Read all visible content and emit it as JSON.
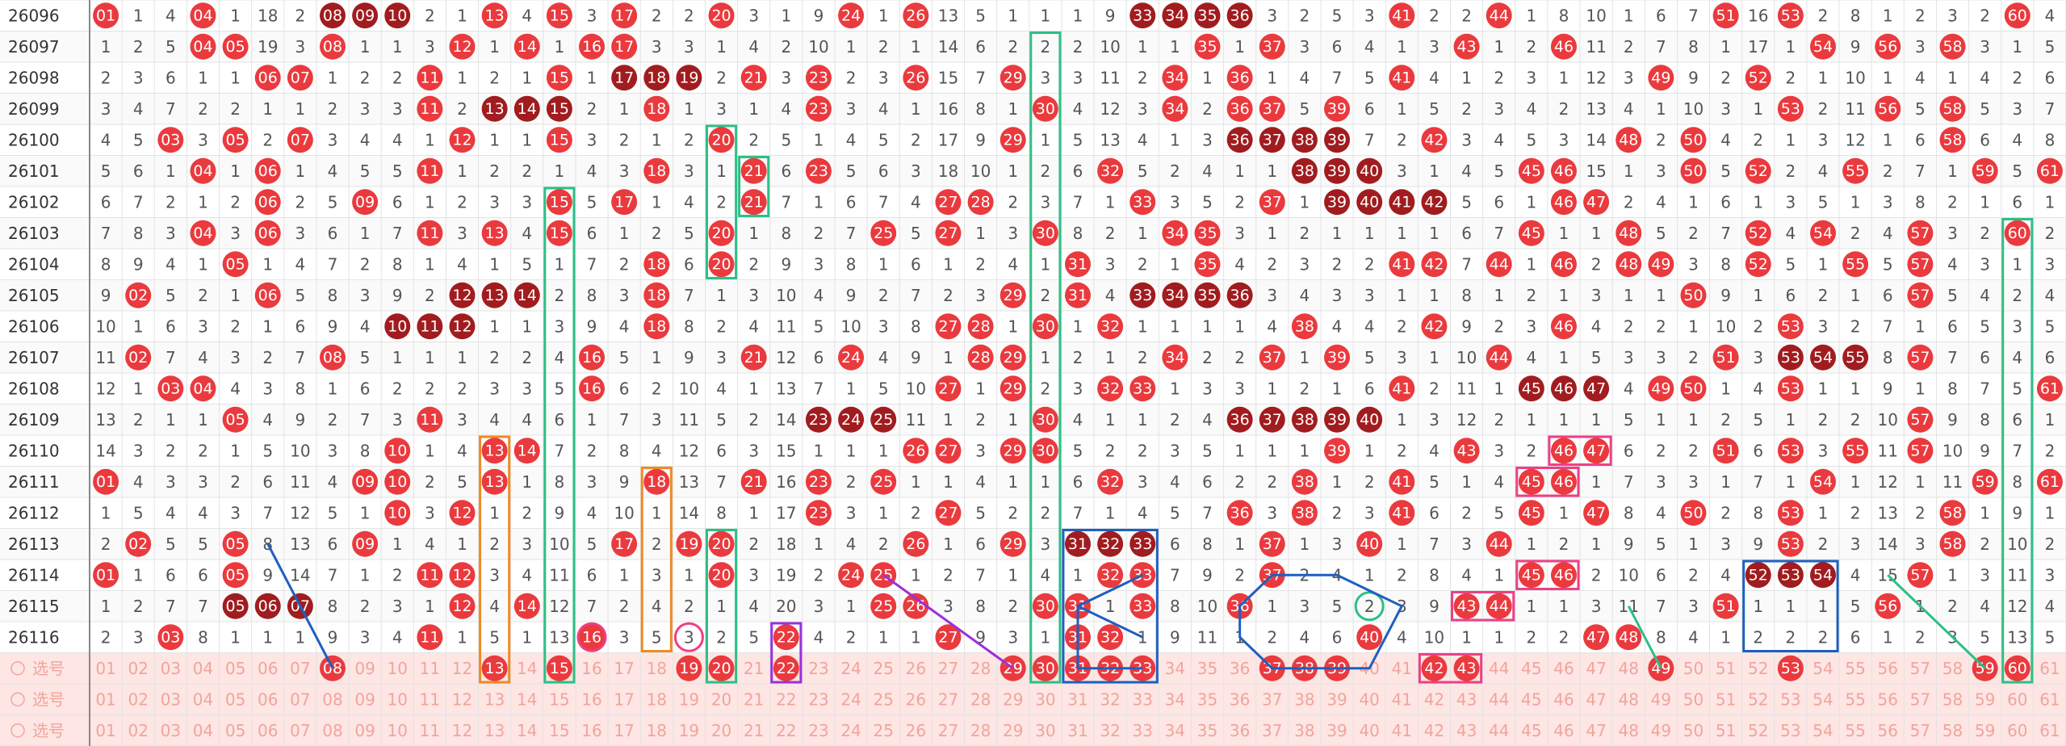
{
  "rows": [
    {
      "period": "26096",
      "cells": [
        "01",
        1,
        4,
        "04",
        1,
        18,
        2,
        "08",
        "09",
        "10",
        2,
        1,
        "13",
        4,
        "15",
        3,
        "17",
        2,
        2,
        "20",
        3,
        1,
        9,
        "24",
        1,
        "26",
        13,
        5,
        1,
        1,
        1,
        9,
        "33",
        "34",
        "35",
        "36",
        3,
        2,
        5,
        3,
        "41",
        2,
        2,
        "44",
        1,
        8,
        10,
        1,
        6,
        7,
        "51",
        16,
        "53",
        2,
        8,
        1,
        2,
        3,
        2,
        "60",
        4
      ]
    },
    {
      "period": "26097",
      "cells": [
        1,
        2,
        5,
        "04",
        "05",
        19,
        3,
        "08",
        1,
        1,
        3,
        "12",
        1,
        "14",
        1,
        "16",
        "17",
        3,
        3,
        1,
        4,
        2,
        10,
        1,
        2,
        1,
        14,
        6,
        2,
        2,
        2,
        10,
        1,
        1,
        "35",
        1,
        "37",
        3,
        6,
        4,
        1,
        3,
        "43",
        1,
        2,
        "46",
        11,
        2,
        7,
        8,
        1,
        17,
        1,
        "54",
        9,
        "56",
        3,
        "58",
        3,
        1,
        5
      ]
    },
    {
      "period": "26098",
      "cells": [
        2,
        3,
        6,
        1,
        1,
        "06",
        "07",
        1,
        2,
        2,
        "11",
        1,
        2,
        1,
        "15",
        1,
        "17",
        "18",
        "19",
        2,
        "21",
        3,
        "23",
        2,
        3,
        "26",
        15,
        7,
        "29",
        3,
        3,
        11,
        2,
        "34",
        1,
        "36",
        1,
        4,
        7,
        5,
        "41",
        4,
        1,
        2,
        3,
        1,
        12,
        3,
        "49",
        9,
        2,
        "52",
        2,
        1,
        10,
        1,
        4,
        1,
        4,
        2,
        6
      ]
    },
    {
      "period": "26099",
      "cells": [
        3,
        4,
        7,
        2,
        2,
        1,
        1,
        2,
        3,
        3,
        "11",
        2,
        "13",
        "14",
        "15",
        2,
        1,
        "18",
        1,
        3,
        1,
        4,
        "23",
        3,
        4,
        1,
        16,
        8,
        1,
        "30",
        4,
        12,
        3,
        "34",
        2,
        "36",
        "37",
        5,
        "39",
        6,
        1,
        5,
        2,
        3,
        4,
        2,
        13,
        4,
        1,
        10,
        3,
        1,
        "53",
        2,
        11,
        "56",
        5,
        "58",
        5,
        3,
        7
      ]
    },
    {
      "period": "26100",
      "cells": [
        4,
        5,
        "03",
        3,
        "05",
        2,
        "07",
        3,
        4,
        4,
        1,
        "12",
        1,
        1,
        "15",
        3,
        2,
        1,
        2,
        "20",
        2,
        5,
        1,
        4,
        5,
        2,
        17,
        9,
        "29",
        1,
        5,
        13,
        4,
        1,
        3,
        "36",
        "37",
        "38",
        "39",
        7,
        2,
        "42",
        3,
        4,
        5,
        3,
        14,
        "48",
        2,
        "50",
        4,
        2,
        1,
        3,
        12,
        1,
        6,
        "58",
        6,
        4,
        8
      ]
    },
    {
      "period": "26101",
      "cells": [
        5,
        6,
        1,
        "04",
        1,
        "06",
        1,
        4,
        5,
        5,
        "11",
        1,
        2,
        2,
        1,
        4,
        3,
        "18",
        3,
        1,
        "21",
        6,
        "23",
        5,
        6,
        3,
        18,
        10,
        1,
        2,
        6,
        "32",
        5,
        2,
        4,
        1,
        1,
        "38",
        "39",
        "40",
        3,
        1,
        4,
        5,
        "45",
        "46",
        15,
        1,
        3,
        "50",
        5,
        "52",
        2,
        4,
        "55",
        2,
        7,
        1,
        "59",
        5,
        "61"
      ]
    },
    {
      "period": "26102",
      "cells": [
        6,
        7,
        2,
        1,
        2,
        "06",
        2,
        5,
        "09",
        6,
        1,
        2,
        3,
        3,
        "15",
        5,
        "17",
        1,
        4,
        2,
        "21",
        7,
        1,
        6,
        7,
        4,
        "27",
        "28",
        2,
        3,
        7,
        1,
        "33",
        3,
        5,
        2,
        "37",
        1,
        "39",
        "40",
        "41",
        "42",
        5,
        6,
        1,
        "46",
        "47",
        2,
        4,
        1,
        6,
        1,
        3,
        5,
        1,
        3,
        8,
        2,
        1,
        6,
        1
      ]
    },
    {
      "period": "26103",
      "cells": [
        7,
        8,
        3,
        "04",
        3,
        "06",
        3,
        6,
        1,
        7,
        "11",
        3,
        "13",
        4,
        "15",
        6,
        1,
        2,
        5,
        "20",
        1,
        8,
        2,
        7,
        "25",
        5,
        "27",
        1,
        3,
        "30",
        8,
        2,
        1,
        "34",
        "35",
        3,
        1,
        2,
        1,
        1,
        1,
        1,
        6,
        7,
        "45",
        1,
        1,
        "48",
        5,
        2,
        7,
        "52",
        4,
        "54",
        2,
        4,
        "57",
        3,
        2,
        "60",
        2
      ]
    },
    {
      "period": "26104",
      "cells": [
        8,
        9,
        4,
        1,
        "05",
        1,
        4,
        7,
        2,
        8,
        1,
        4,
        1,
        5,
        1,
        7,
        2,
        "18",
        6,
        "20",
        2,
        9,
        3,
        8,
        1,
        6,
        1,
        2,
        4,
        1,
        "31",
        3,
        2,
        1,
        "35",
        4,
        2,
        3,
        2,
        2,
        "41",
        "42",
        7,
        "44",
        1,
        "46",
        2,
        "48",
        "49",
        3,
        8,
        "52",
        5,
        1,
        "55",
        5,
        "57",
        4,
        3,
        1,
        3
      ]
    },
    {
      "period": "26105",
      "cells": [
        9,
        "02",
        5,
        2,
        1,
        "06",
        5,
        8,
        3,
        9,
        2,
        "12",
        "13",
        "14",
        2,
        8,
        3,
        "18",
        7,
        1,
        3,
        10,
        4,
        9,
        2,
        7,
        2,
        3,
        "29",
        2,
        "31",
        4,
        "33",
        "34",
        "35",
        "36",
        3,
        4,
        3,
        3,
        1,
        1,
        8,
        1,
        2,
        1,
        3,
        1,
        1,
        "50",
        9,
        1,
        6,
        2,
        1,
        6,
        "57",
        5,
        4,
        2,
        4
      ]
    },
    {
      "period": "26106",
      "cells": [
        10,
        1,
        6,
        3,
        2,
        1,
        6,
        9,
        4,
        "10",
        "11",
        "12",
        1,
        1,
        3,
        9,
        4,
        "18",
        8,
        2,
        4,
        11,
        5,
        10,
        3,
        8,
        "27",
        "28",
        1,
        "30",
        1,
        "32",
        1,
        1,
        1,
        1,
        4,
        "38",
        4,
        4,
        2,
        "42",
        9,
        2,
        3,
        "46",
        4,
        2,
        2,
        1,
        10,
        2,
        "53",
        3,
        2,
        7,
        1,
        6,
        5,
        3,
        5
      ]
    },
    {
      "period": "26107",
      "cells": [
        11,
        "02",
        7,
        4,
        3,
        2,
        7,
        "08",
        5,
        1,
        1,
        1,
        2,
        2,
        4,
        "16",
        5,
        1,
        9,
        3,
        "21",
        12,
        6,
        "24",
        4,
        9,
        1,
        "28",
        "29",
        1,
        2,
        1,
        2,
        "34",
        2,
        2,
        "37",
        1,
        "39",
        5,
        3,
        1,
        10,
        "44",
        4,
        1,
        5,
        3,
        3,
        2,
        "51",
        3,
        "53",
        "54",
        "55",
        8,
        "57",
        7,
        6,
        4,
        6
      ]
    },
    {
      "period": "26108",
      "cells": [
        12,
        1,
        "03",
        "04",
        4,
        3,
        8,
        1,
        6,
        2,
        2,
        2,
        3,
        3,
        5,
        "16",
        6,
        2,
        10,
        4,
        1,
        13,
        7,
        1,
        5,
        10,
        "27",
        1,
        "29",
        2,
        3,
        "32",
        "33",
        1,
        3,
        3,
        1,
        2,
        1,
        6,
        "41",
        2,
        11,
        1,
        "45",
        "46",
        "47",
        4,
        "49",
        "50",
        1,
        4,
        "53",
        1,
        1,
        9,
        1,
        8,
        7,
        5,
        "61"
      ]
    },
    {
      "period": "26109",
      "cells": [
        13,
        2,
        1,
        1,
        "05",
        4,
        9,
        2,
        7,
        3,
        "11",
        3,
        4,
        4,
        6,
        1,
        7,
        3,
        11,
        5,
        2,
        14,
        "23",
        "24",
        "25",
        11,
        1,
        2,
        1,
        "30",
        4,
        1,
        1,
        2,
        4,
        "36",
        "37",
        "38",
        "39",
        "40",
        1,
        3,
        12,
        2,
        1,
        1,
        1,
        5,
        1,
        1,
        2,
        5,
        1,
        2,
        2,
        10,
        "57",
        9,
        8,
        6,
        1
      ]
    },
    {
      "period": "26110",
      "cells": [
        14,
        3,
        2,
        2,
        1,
        5,
        10,
        3,
        8,
        "10",
        1,
        4,
        "13",
        "14",
        7,
        2,
        8,
        4,
        12,
        6,
        3,
        15,
        1,
        1,
        1,
        "26",
        "27",
        3,
        "29",
        "30",
        5,
        2,
        2,
        3,
        5,
        1,
        1,
        1,
        "39",
        1,
        2,
        4,
        "43",
        3,
        2,
        "46",
        "47",
        6,
        2,
        2,
        "51",
        6,
        "53",
        3,
        "55",
        11,
        "57",
        10,
        9,
        7,
        2
      ]
    },
    {
      "period": "26111",
      "cells": [
        "01",
        4,
        3,
        3,
        2,
        6,
        11,
        4,
        "09",
        "10",
        2,
        5,
        "13",
        1,
        8,
        3,
        9,
        "18",
        13,
        7,
        "21",
        16,
        "23",
        2,
        "25",
        1,
        1,
        4,
        1,
        1,
        6,
        "32",
        3,
        4,
        6,
        2,
        2,
        "38",
        1,
        2,
        "41",
        5,
        1,
        4,
        "45",
        "46",
        1,
        7,
        3,
        3,
        1,
        7,
        1,
        "54",
        1,
        12,
        1,
        11,
        "59",
        8,
        "61"
      ]
    },
    {
      "period": "26112",
      "cells": [
        1,
        5,
        4,
        4,
        3,
        7,
        12,
        5,
        1,
        "10",
        3,
        "12",
        1,
        2,
        9,
        4,
        10,
        1,
        14,
        8,
        1,
        17,
        "23",
        3,
        1,
        2,
        "27",
        5,
        2,
        2,
        7,
        1,
        4,
        5,
        7,
        "36",
        3,
        "38",
        2,
        3,
        "41",
        6,
        2,
        5,
        "45",
        1,
        "47",
        8,
        4,
        "50",
        2,
        8,
        "53",
        1,
        2,
        13,
        2,
        "58",
        1,
        9,
        1
      ]
    },
    {
      "period": "26113",
      "cells": [
        2,
        "02",
        5,
        5,
        "05",
        8,
        13,
        6,
        "09",
        1,
        4,
        1,
        2,
        3,
        10,
        5,
        "17",
        2,
        "19",
        "20",
        2,
        18,
        1,
        4,
        2,
        "26",
        1,
        6,
        "29",
        3,
        "31",
        "32",
        "33",
        6,
        8,
        1,
        "37",
        1,
        3,
        "40",
        1,
        7,
        3,
        "44",
        1,
        2,
        1,
        9,
        5,
        1,
        3,
        9,
        "53",
        2,
        3,
        14,
        3,
        "58",
        2,
        10,
        2
      ]
    },
    {
      "period": "26114",
      "cells": [
        "01",
        1,
        6,
        6,
        "05",
        9,
        14,
        7,
        1,
        2,
        "11",
        "12",
        3,
        4,
        11,
        6,
        1,
        3,
        1,
        "20",
        3,
        19,
        2,
        "24",
        "25",
        1,
        2,
        7,
        1,
        4,
        1,
        "32",
        "33",
        7,
        9,
        2,
        "37",
        2,
        4,
        1,
        2,
        8,
        4,
        1,
        "45",
        "46",
        2,
        10,
        6,
        2,
        4,
        "52",
        "53",
        "54",
        4,
        15,
        "57",
        1,
        3,
        11,
        3
      ]
    },
    {
      "period": "26115",
      "cells": [
        1,
        2,
        7,
        7,
        "05",
        "06",
        "07",
        8,
        2,
        3,
        1,
        "12",
        4,
        "14",
        12,
        7,
        2,
        4,
        2,
        1,
        4,
        20,
        3,
        1,
        "25",
        "26",
        3,
        8,
        2,
        "30",
        "31",
        1,
        "33",
        8,
        10,
        "36",
        1,
        3,
        5,
        2,
        3,
        9,
        "43",
        "44",
        1,
        1,
        3,
        11,
        7,
        3,
        "51",
        1,
        1,
        1,
        5,
        "56",
        1,
        2,
        4,
        12,
        4
      ]
    },
    {
      "period": "26116",
      "cells": [
        2,
        3,
        "03",
        8,
        1,
        1,
        1,
        9,
        3,
        4,
        "11",
        1,
        5,
        1,
        13,
        "16",
        3,
        5,
        3,
        2,
        5,
        "22",
        4,
        2,
        1,
        1,
        "27",
        9,
        3,
        1,
        "31",
        "32",
        1,
        9,
        11,
        1,
        2,
        4,
        6,
        "40",
        4,
        10,
        1,
        1,
        2,
        2,
        "47",
        "48",
        8,
        4,
        1,
        2,
        2,
        2,
        6,
        1,
        2,
        3,
        5,
        13,
        5
      ]
    }
  ],
  "picker": {
    "numbers": [
      "01",
      "02",
      "03",
      "04",
      "05",
      "06",
      "07",
      "08",
      "09",
      "10",
      "11",
      "12",
      "13",
      "14",
      "15",
      "16",
      "17",
      "18",
      "19",
      "20",
      "21",
      "22",
      "23",
      "24",
      "25",
      "26",
      "27",
      "28",
      "29",
      "30",
      "31",
      "32",
      "33",
      "34",
      "35",
      "36",
      "37",
      "38",
      "39",
      "40",
      "41",
      "42",
      "43",
      "44",
      "45",
      "46",
      "47",
      "48",
      "49",
      "50",
      "51",
      "52",
      "53",
      "54",
      "55",
      "56",
      "57",
      "58",
      "59",
      "60",
      "61"
    ],
    "rows": [
      {
        "label": "选号",
        "picked": [
          "08",
          "13",
          "15",
          "19",
          "20",
          "22",
          "29",
          "30",
          "31",
          "32",
          "33",
          "37",
          "38",
          "39",
          "42",
          "43",
          "49",
          "53",
          "59",
          "60"
        ]
      },
      {
        "label": "选号",
        "picked": []
      },
      {
        "label": "选号",
        "picked": []
      }
    ]
  }
}
